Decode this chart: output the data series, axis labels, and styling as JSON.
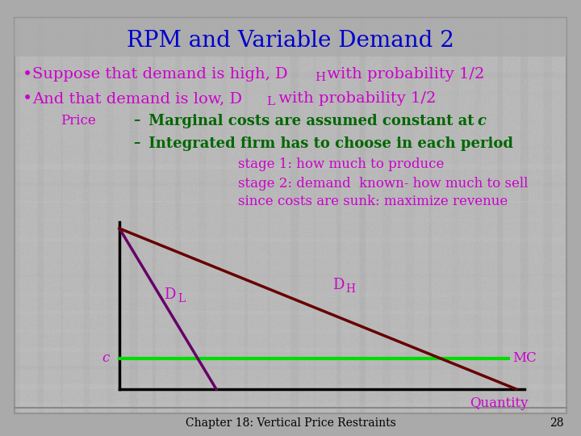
{
  "title": "RPM and Variable Demand 2",
  "title_color": "#0000CC",
  "title_fontsize": 20,
  "bullet_color": "#CC00CC",
  "bullet_fontsize": 14,
  "price_color": "#CC00CC",
  "dash_color": "#006600",
  "dash_fontsize": 13,
  "stage_color": "#CC00CC",
  "stage_fontsize": 12,
  "quantity_color": "#CC00CC",
  "mc_color": "#CC00CC",
  "demand_label_color": "#CC00CC",
  "c_color": "#CC00CC",
  "bg_outer": "#AAAAAA",
  "bg_slide": "#BBBBBB",
  "title_bar_color": "#999999",
  "axis_color": "#000000",
  "dl_line_color": "#660066",
  "dh_line_color": "#660000",
  "mc_line_color": "#00DD00",
  "footer_text": "Chapter 18: Vertical Price Restraints",
  "footer_page": "28",
  "footer_color": "#000000",
  "footer_fontsize": 10
}
